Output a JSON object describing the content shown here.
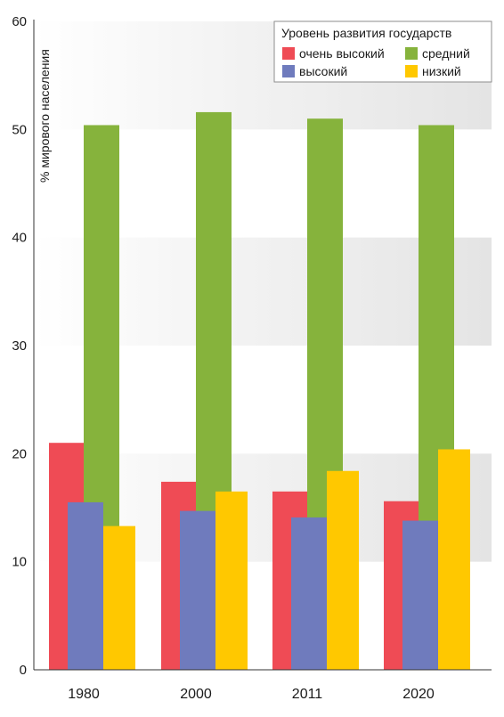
{
  "chart_data": {
    "type": "bar",
    "ylabel": "% мирового населения",
    "xlabel": "",
    "ylim": [
      0,
      60
    ],
    "yticks": [
      0,
      10,
      20,
      30,
      40,
      50,
      60
    ],
    "categories": [
      "1980",
      "2000",
      "2011",
      "2020"
    ],
    "series": [
      {
        "name": "очень высокий",
        "color": "#ef4b55",
        "values": [
          21.0,
          17.4,
          16.5,
          15.6
        ]
      },
      {
        "name": "средний",
        "color": "#86b33c",
        "values": [
          50.4,
          51.6,
          51.0,
          50.4
        ]
      },
      {
        "name": "высокий",
        "color": "#6f7bbd",
        "values": [
          15.5,
          14.7,
          14.1,
          13.8
        ]
      },
      {
        "name": "низкий",
        "color": "#ffc800",
        "values": [
          13.3,
          16.5,
          18.4,
          20.4
        ]
      }
    ],
    "legend": {
      "title": "Уровень развития государств",
      "placement": "top-right"
    },
    "background": "alternating horizontal bands",
    "band_color": "#ececec"
  }
}
